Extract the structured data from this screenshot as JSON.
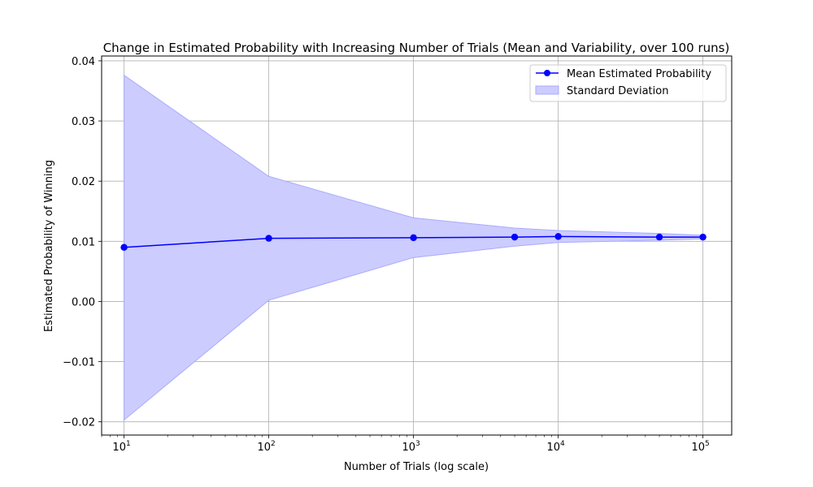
{
  "chart_data": {
    "type": "line",
    "title": "Change in Estimated Probability with Increasing Number of Trials (Mean and Variability, over 100 runs)",
    "xlabel": "Number of Trials (log scale)",
    "ylabel": "Estimated Probability of Winning",
    "x_scale": "log",
    "xlim": [
      7,
      158000
    ],
    "ylim": [
      -0.0222,
      0.0408
    ],
    "grid": true,
    "legend_placement": "top-right",
    "x": [
      10,
      100,
      1000,
      5000,
      10000,
      50000,
      100000
    ],
    "x_ticks": [
      {
        "value": 10,
        "base": "10",
        "exp": "1"
      },
      {
        "value": 100,
        "base": "10",
        "exp": "2"
      },
      {
        "value": 1000,
        "base": "10",
        "exp": "3"
      },
      {
        "value": 10000,
        "base": "10",
        "exp": "4"
      },
      {
        "value": 100000,
        "base": "10",
        "exp": "5"
      }
    ],
    "y_ticks": [
      {
        "value": -0.02,
        "label": "−0.02"
      },
      {
        "value": -0.01,
        "label": "−0.01"
      },
      {
        "value": 0.0,
        "label": "0.00"
      },
      {
        "value": 0.01,
        "label": "0.01"
      },
      {
        "value": 0.02,
        "label": "0.02"
      },
      {
        "value": 0.03,
        "label": "0.03"
      },
      {
        "value": 0.04,
        "label": "0.04"
      }
    ],
    "series": [
      {
        "name": "Mean Estimated Probability",
        "kind": "line-marker",
        "color": "#0000ff",
        "values": [
          0.009,
          0.0105,
          0.0106,
          0.0107,
          0.0108,
          0.0107,
          0.0107
        ]
      },
      {
        "name": "Standard Deviation",
        "kind": "band",
        "color": "#ccccff",
        "edge_color": "#aaaaff",
        "upper": [
          0.0376,
          0.0208,
          0.0139,
          0.0122,
          0.0118,
          0.0113,
          0.011
        ],
        "lower": [
          -0.0197,
          0.0002,
          0.0073,
          0.0092,
          0.0098,
          0.0102,
          0.0104
        ]
      }
    ]
  }
}
